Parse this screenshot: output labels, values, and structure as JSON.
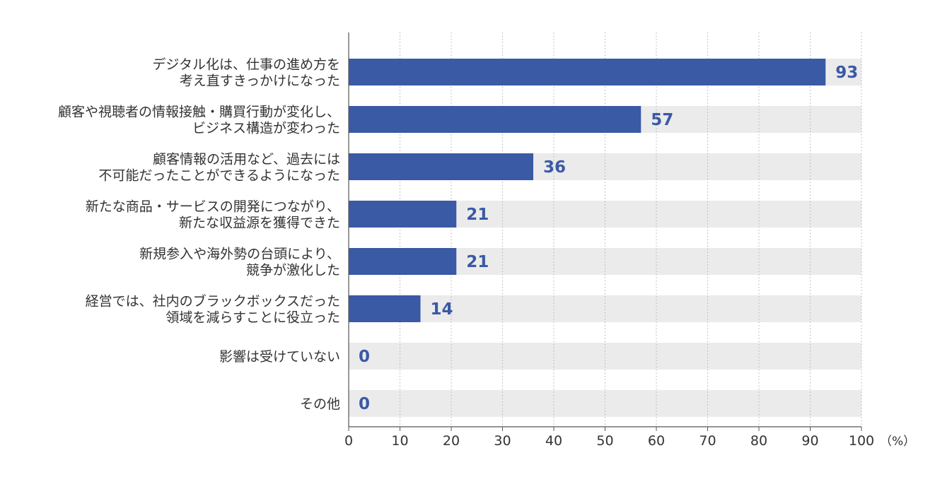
{
  "chart_data": {
    "type": "bar",
    "orientation": "horizontal",
    "categories": [
      [
        "デジタル化は、仕事の進め方を",
        "考え直すきっかけになった"
      ],
      [
        "顧客や視聴者の情報接触・購買行動が変化し、",
        "ビジネス構造が変わった"
      ],
      [
        "顧客情報の活用など、過去には",
        "不可能だったことができるようになった"
      ],
      [
        "新たな商品・サービスの開発につながり、",
        "新たな収益源を獲得できた"
      ],
      [
        "新規参入や海外勢の台頭により、",
        "競争が激化した"
      ],
      [
        "経営では、社内のブラックボックスだった",
        "領域を減らすことに役立った"
      ],
      [
        "影響は受けていない"
      ],
      [
        "その他"
      ]
    ],
    "values": [
      93,
      57,
      36,
      21,
      21,
      14,
      0,
      0
    ],
    "value_labels": [
      "93",
      "57",
      "36",
      "21",
      "21",
      "14",
      "0",
      "0"
    ],
    "xlim": [
      0,
      100
    ],
    "xticks": [
      "0",
      "10",
      "20",
      "30",
      "40",
      "50",
      "60",
      "70",
      "80",
      "90",
      "100"
    ],
    "unit": "（%）",
    "grid": true,
    "colors": {
      "bar": "#3a5aa6",
      "background_bar": "#ebebeb",
      "value_text": "#3a5aa6",
      "grid": "#b0b0b0",
      "axis": "#555555"
    }
  }
}
